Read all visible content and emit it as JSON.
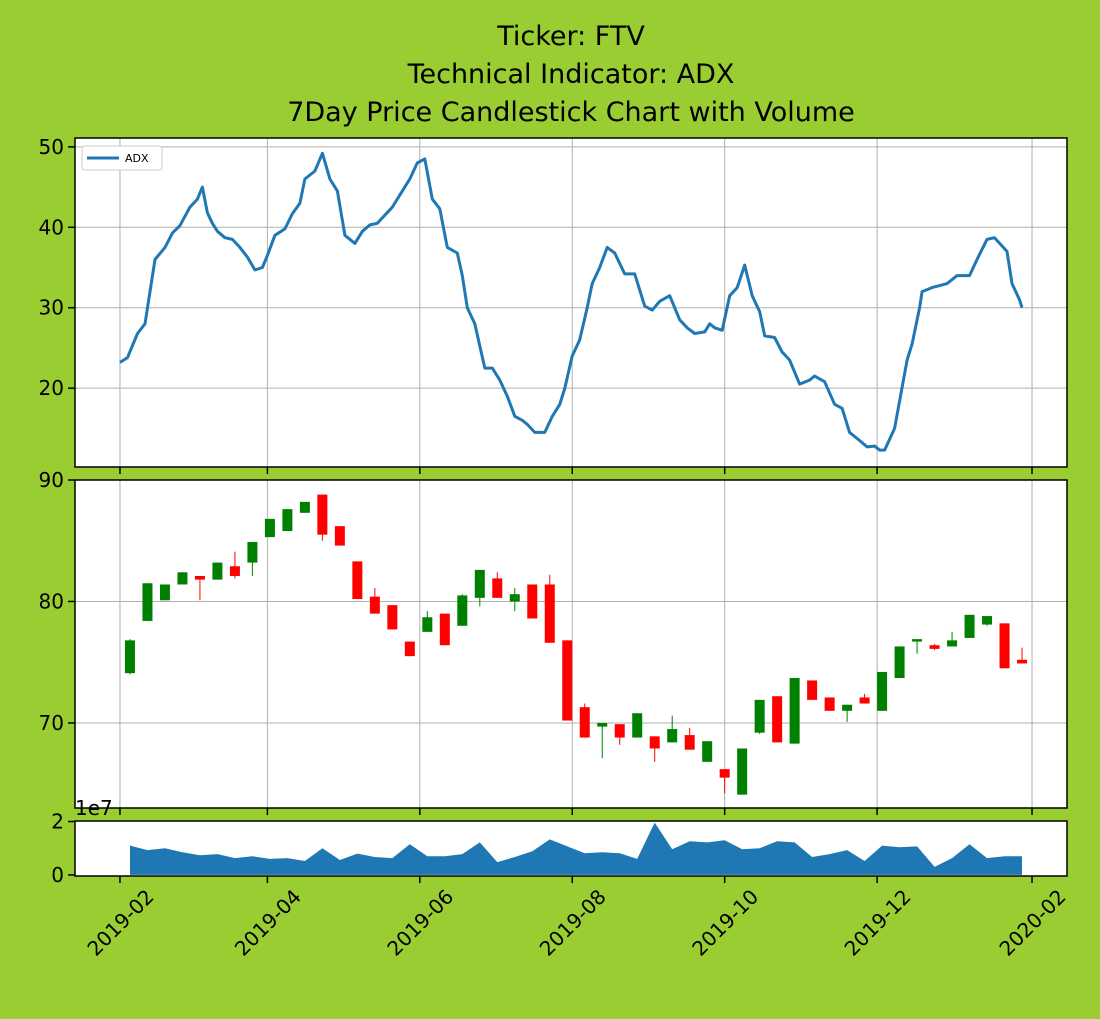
{
  "title": [
    "Ticker: FTV",
    "Technical Indicator: ADX",
    "7Day Price Candlestick Chart with Volume"
  ],
  "chart_data": [
    {
      "type": "line",
      "legend": "upper left",
      "grid": true,
      "ylim": [
        10.2,
        51.1
      ],
      "yticks": [
        20,
        30,
        40,
        50
      ],
      "x": [
        "2019-02-01",
        "2019-02-04",
        "2019-02-06",
        "2019-02-08",
        "2019-02-11",
        "2019-02-15",
        "2019-02-19",
        "2019-02-22",
        "2019-02-25",
        "2019-03-01",
        "2019-03-04",
        "2019-03-06",
        "2019-03-08",
        "2019-03-10",
        "2019-03-12",
        "2019-03-15",
        "2019-03-18",
        "2019-03-21",
        "2019-03-24",
        "2019-03-27",
        "2019-03-30",
        "2019-04-01",
        "2019-04-04",
        "2019-04-08",
        "2019-04-11",
        "2019-04-14",
        "2019-04-16",
        "2019-04-20",
        "2019-04-23",
        "2019-04-26",
        "2019-04-29",
        "2019-05-02",
        "2019-05-06",
        "2019-05-09",
        "2019-05-12",
        "2019-05-15",
        "2019-05-18",
        "2019-05-21",
        "2019-05-24",
        "2019-05-28",
        "2019-05-31",
        "2019-06-03",
        "2019-06-06",
        "2019-06-09",
        "2019-06-12",
        "2019-06-16",
        "2019-06-18",
        "2019-06-20",
        "2019-06-23",
        "2019-06-27",
        "2019-06-30",
        "2019-07-03",
        "2019-07-06",
        "2019-07-09",
        "2019-07-12",
        "2019-07-14",
        "2019-07-17",
        "2019-07-21",
        "2019-07-24",
        "2019-07-27",
        "2019-07-29",
        "2019-08-01",
        "2019-08-04",
        "2019-08-07",
        "2019-08-09",
        "2019-08-12",
        "2019-08-15",
        "2019-08-18",
        "2019-08-22",
        "2019-08-26",
        "2019-08-30",
        "2019-09-02",
        "2019-09-05",
        "2019-09-09",
        "2019-09-13",
        "2019-09-16",
        "2019-09-19",
        "2019-09-23",
        "2019-09-25",
        "2019-09-27",
        "2019-09-30",
        "2019-10-03",
        "2019-10-06",
        "2019-10-09",
        "2019-10-12",
        "2019-10-15",
        "2019-10-17",
        "2019-10-21",
        "2019-10-24",
        "2019-10-27",
        "2019-10-31",
        "2019-11-04",
        "2019-11-06",
        "2019-11-10",
        "2019-11-14",
        "2019-11-17",
        "2019-11-20",
        "2019-11-24",
        "2019-11-27",
        "2019-11-30",
        "2019-12-02",
        "2019-12-04",
        "2019-12-08",
        "2019-12-13",
        "2019-12-15",
        "2019-12-18",
        "2019-12-19",
        "2019-12-23",
        "2019-12-29",
        "2020-01-02",
        "2020-01-07",
        "2020-01-10",
        "2020-01-14",
        "2020-01-17",
        "2020-01-22",
        "2020-01-24",
        "2020-01-27",
        "2020-01-28"
      ],
      "series": [
        {
          "name": "ADX",
          "color": "#1f77b4",
          "values": [
            23.2,
            23.8,
            25.3,
            26.8,
            28,
            36,
            37.5,
            39.3,
            40.2,
            42.5,
            43.5,
            45,
            41.8,
            40.5,
            39.5,
            38.7,
            38.5,
            37.5,
            36.3,
            34.7,
            35,
            36.5,
            39,
            39.8,
            41.7,
            43,
            46,
            47,
            49.2,
            46,
            44.5,
            39,
            38,
            39.5,
            40.3,
            40.5,
            41.5,
            42.5,
            44,
            46,
            48,
            48.5,
            43.5,
            42.3,
            37.5,
            36.8,
            34,
            30,
            28,
            22.5,
            22.5,
            21,
            19,
            16.5,
            16,
            15.5,
            14.5,
            14.5,
            16.5,
            18,
            20,
            24,
            26,
            30,
            33,
            35,
            37.5,
            36.8,
            34.2,
            34.2,
            30.2,
            29.7,
            30.8,
            31.5,
            28.5,
            27.5,
            26.8,
            27,
            28,
            27.5,
            27.2,
            31.5,
            32.5,
            35.3,
            31.5,
            29.5,
            26.5,
            26.3,
            24.5,
            23.5,
            20.5,
            21,
            21.5,
            20.8,
            18,
            17.5,
            14.5,
            13.5,
            12.7,
            12.8,
            12.3,
            12.3,
            15,
            23.5,
            25.5,
            30,
            32,
            32.5,
            33,
            34,
            34,
            36,
            38.5,
            38.7,
            37,
            33,
            31,
            30
          ]
        }
      ]
    },
    {
      "type": "candlestick",
      "grid": true,
      "up_color": "green",
      "down_color": "red",
      "ylim": [
        63.0,
        90
      ],
      "yticks": [
        70,
        80,
        90
      ],
      "x": [
        "2019-02-05",
        "2019-02-12",
        "2019-02-19",
        "2019-02-26",
        "2019-03-05",
        "2019-03-12",
        "2019-03-19",
        "2019-03-26",
        "2019-04-02",
        "2019-04-09",
        "2019-04-16",
        "2019-04-23",
        "2019-04-30",
        "2019-05-07",
        "2019-05-14",
        "2019-05-21",
        "2019-05-28",
        "2019-06-04",
        "2019-06-11",
        "2019-06-18",
        "2019-06-25",
        "2019-07-02",
        "2019-07-09",
        "2019-07-16",
        "2019-07-23",
        "2019-07-30",
        "2019-08-06",
        "2019-08-13",
        "2019-08-20",
        "2019-08-27",
        "2019-09-03",
        "2019-09-10",
        "2019-09-17",
        "2019-09-24",
        "2019-10-01",
        "2019-10-08",
        "2019-10-15",
        "2019-10-22",
        "2019-10-29",
        "2019-11-05",
        "2019-11-12",
        "2019-11-19",
        "2019-11-26",
        "2019-12-03",
        "2019-12-10",
        "2019-12-17",
        "2019-12-24",
        "2019-12-31",
        "2020-01-07",
        "2020-01-14",
        "2020-01-21",
        "2020-01-28"
      ],
      "open": [
        74.1,
        78.4,
        80.1,
        81.4,
        82.1,
        81.8,
        82.9,
        83.2,
        85.3,
        85.8,
        87.3,
        88.8,
        86.2,
        83.3,
        80.4,
        79.7,
        76.7,
        77.5,
        79.0,
        78.0,
        80.3,
        81.9,
        80.0,
        81.4,
        81.4,
        76.8,
        71.3,
        69.7,
        69.9,
        68.8,
        68.9,
        68.4,
        69.0,
        66.8,
        66.2,
        64.1,
        69.2,
        72.2,
        68.3,
        73.5,
        72.1,
        71.0,
        72.1,
        71.0,
        73.7,
        76.7,
        76.4,
        76.3,
        77.0,
        78.1,
        78.2,
        75.2
      ],
      "high": [
        76.9,
        81.5,
        81.4,
        82.4,
        82.1,
        83.2,
        84.1,
        84.9,
        86.8,
        87.6,
        88.2,
        88.8,
        86.2,
        83.3,
        81.1,
        79.7,
        76.7,
        79.2,
        79.0,
        80.6,
        82.6,
        82.4,
        81.1,
        81.4,
        82.2,
        76.8,
        71.6,
        70.0,
        69.9,
        70.8,
        68.9,
        70.6,
        69.6,
        68.5,
        66.2,
        67.9,
        71.9,
        72.2,
        73.7,
        73.5,
        72.1,
        71.5,
        72.4,
        74.2,
        76.3,
        76.9,
        76.5,
        77.5,
        78.9,
        78.8,
        78.2,
        76.2
      ],
      "low": [
        74.0,
        78.4,
        80.1,
        81.4,
        80.1,
        81.8,
        81.9,
        82.1,
        85.3,
        85.8,
        87.3,
        85.0,
        84.6,
        80.2,
        79.0,
        77.7,
        75.5,
        77.5,
        76.4,
        78.0,
        79.6,
        80.3,
        79.2,
        78.6,
        76.6,
        70.2,
        68.8,
        67.1,
        68.2,
        68.8,
        66.8,
        68.4,
        67.8,
        66.8,
        64.2,
        64.1,
        69.1,
        68.4,
        68.3,
        71.9,
        71.0,
        70.1,
        71.6,
        71.0,
        73.7,
        75.7,
        76.0,
        76.3,
        77.0,
        78.0,
        74.5,
        74.9
      ],
      "close": [
        76.8,
        81.5,
        81.4,
        82.4,
        81.8,
        83.2,
        82.1,
        84.9,
        86.8,
        87.6,
        88.2,
        85.5,
        84.6,
        80.2,
        79.0,
        77.7,
        75.5,
        78.7,
        76.4,
        80.5,
        82.6,
        80.3,
        80.6,
        78.6,
        76.6,
        70.2,
        68.8,
        70.0,
        68.8,
        70.8,
        67.9,
        69.5,
        67.8,
        68.5,
        65.5,
        67.9,
        71.9,
        68.4,
        73.7,
        71.9,
        71.0,
        71.5,
        71.6,
        74.2,
        76.3,
        76.9,
        76.1,
        76.8,
        78.9,
        78.8,
        74.5,
        74.9
      ]
    },
    {
      "type": "area",
      "color": "#1f77b4",
      "offset_label": "1e7",
      "ylim": [
        -0.04,
        2.02
      ],
      "yticks": [
        0,
        2
      ],
      "xlim": [
        "2019-01-14",
        "2020-02-15"
      ],
      "xticks": [
        {
          "value": "2019-02-01",
          "label": "2019-02"
        },
        {
          "value": "2019-04-01",
          "label": "2019-04"
        },
        {
          "value": "2019-06-01",
          "label": "2019-06"
        },
        {
          "value": "2019-08-01",
          "label": "2019-08"
        },
        {
          "value": "2019-10-01",
          "label": "2019-10"
        },
        {
          "value": "2019-12-01",
          "label": "2019-12"
        },
        {
          "value": "2020-02-01",
          "label": "2020-02"
        }
      ],
      "x": [
        "2019-02-05",
        "2019-02-12",
        "2019-02-19",
        "2019-02-26",
        "2019-03-05",
        "2019-03-12",
        "2019-03-19",
        "2019-03-26",
        "2019-04-02",
        "2019-04-09",
        "2019-04-16",
        "2019-04-23",
        "2019-04-30",
        "2019-05-07",
        "2019-05-14",
        "2019-05-21",
        "2019-05-28",
        "2019-06-04",
        "2019-06-11",
        "2019-06-18",
        "2019-06-25",
        "2019-07-02",
        "2019-07-09",
        "2019-07-16",
        "2019-07-23",
        "2019-07-30",
        "2019-08-06",
        "2019-08-13",
        "2019-08-20",
        "2019-08-27",
        "2019-09-03",
        "2019-09-10",
        "2019-09-17",
        "2019-09-24",
        "2019-10-01",
        "2019-10-08",
        "2019-10-15",
        "2019-10-22",
        "2019-10-29",
        "2019-11-05",
        "2019-11-12",
        "2019-11-19",
        "2019-11-26",
        "2019-12-03",
        "2019-12-10",
        "2019-12-17",
        "2019-12-24",
        "2019-12-31",
        "2020-01-07",
        "2020-01-14",
        "2020-01-21",
        "2020-01-28"
      ],
      "values": [
        1.1,
        0.93,
        1.0,
        0.85,
        0.74,
        0.78,
        0.63,
        0.7,
        0.6,
        0.63,
        0.52,
        1.0,
        0.56,
        0.8,
        0.67,
        0.63,
        1.15,
        0.7,
        0.7,
        0.78,
        1.22,
        0.48,
        0.67,
        0.89,
        1.33,
        1.07,
        0.81,
        0.85,
        0.81,
        0.6,
        1.96,
        0.96,
        1.26,
        1.22,
        1.3,
        0.96,
        1.0,
        1.26,
        1.22,
        0.67,
        0.78,
        0.93,
        0.52,
        1.1,
        1.04,
        1.07,
        0.3,
        0.63,
        1.15,
        0.63,
        0.7,
        0.7
      ]
    }
  ]
}
